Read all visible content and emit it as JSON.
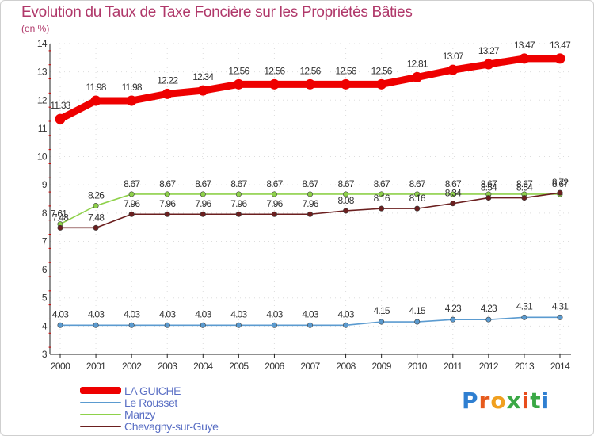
{
  "title": "Evolution du Taux de Taxe Foncière sur les Propriétés Bâties",
  "subtitle": "(en %)",
  "brand": {
    "logo_letters": [
      "P",
      "r",
      "o",
      "x",
      "i",
      "t",
      "i"
    ],
    "logo_colors": [
      "#2f7fd1",
      "#e65a1c",
      "#f0a020",
      "#3aa845",
      "#e84c1c",
      "#3aa845",
      "#2f7fd1"
    ]
  },
  "chart_data": {
    "type": "line",
    "title": "Evolution du Taux de Taxe Foncière sur les Propriétés Bâties",
    "ylabel": "(en %)",
    "xlabel": "",
    "x": [
      2000,
      2001,
      2002,
      2003,
      2004,
      2005,
      2006,
      2007,
      2008,
      2009,
      2010,
      2011,
      2012,
      2013,
      2014
    ],
    "ylim": [
      3,
      14
    ],
    "yticks": [
      3,
      4,
      5,
      6,
      7,
      8,
      9,
      10,
      11,
      12,
      13,
      14
    ],
    "legend_position": "bottom-left",
    "series": [
      {
        "name": "LA GUICHE",
        "color": "#ee0000",
        "values": [
          11.33,
          11.98,
          11.98,
          12.22,
          12.34,
          12.56,
          12.56,
          12.56,
          12.56,
          12.56,
          12.81,
          13.07,
          13.27,
          13.47,
          13.47
        ],
        "labels": [
          "11.33",
          "11.98",
          "11.98",
          "12.22",
          "12.34",
          "12.56",
          "12.56",
          "12.56",
          "12.56",
          "12.56",
          "12.81",
          "13.07",
          "13.27",
          "13.47",
          "13.47"
        ]
      },
      {
        "name": "Le Rousset",
        "color": "#5b9bd0",
        "values": [
          4.03,
          4.03,
          4.03,
          4.03,
          4.03,
          4.03,
          4.03,
          4.03,
          4.03,
          4.15,
          4.15,
          4.23,
          4.23,
          4.31,
          4.31
        ],
        "labels": [
          "4.03",
          "4.03",
          "4.03",
          "4.03",
          "4.03",
          "4.03",
          "4.03",
          "4.03",
          "4.03",
          "4.15",
          "4.15",
          "4.23",
          "4.23",
          "4.31",
          "4.31"
        ]
      },
      {
        "name": "Marizy",
        "color": "#8ed14a",
        "values": [
          7.61,
          8.26,
          8.67,
          8.67,
          8.67,
          8.67,
          8.67,
          8.67,
          8.67,
          8.67,
          8.67,
          8.67,
          8.67,
          8.67,
          8.67
        ],
        "labels": [
          "7.61",
          "8.26",
          "8.67",
          "8.67",
          "8.67",
          "8.67",
          "8.67",
          "8.67",
          "8.67",
          "8.67",
          "8.67",
          "8.67",
          "8.67",
          "8.67",
          "8.67"
        ]
      },
      {
        "name": "Chevagny-sur-Guye",
        "color": "#6b1f1f",
        "values": [
          7.48,
          7.48,
          7.96,
          7.96,
          7.96,
          7.96,
          7.96,
          7.96,
          8.08,
          8.16,
          8.16,
          8.34,
          8.54,
          8.54,
          8.72
        ],
        "labels": [
          "7.48",
          "7.48",
          "7.96",
          "7.96",
          "7.96",
          "7.96",
          "7.96",
          "7.96",
          "8.08",
          "8.16",
          "8.16",
          "8.34",
          "8.54",
          "8.54",
          "8.72"
        ]
      }
    ]
  }
}
